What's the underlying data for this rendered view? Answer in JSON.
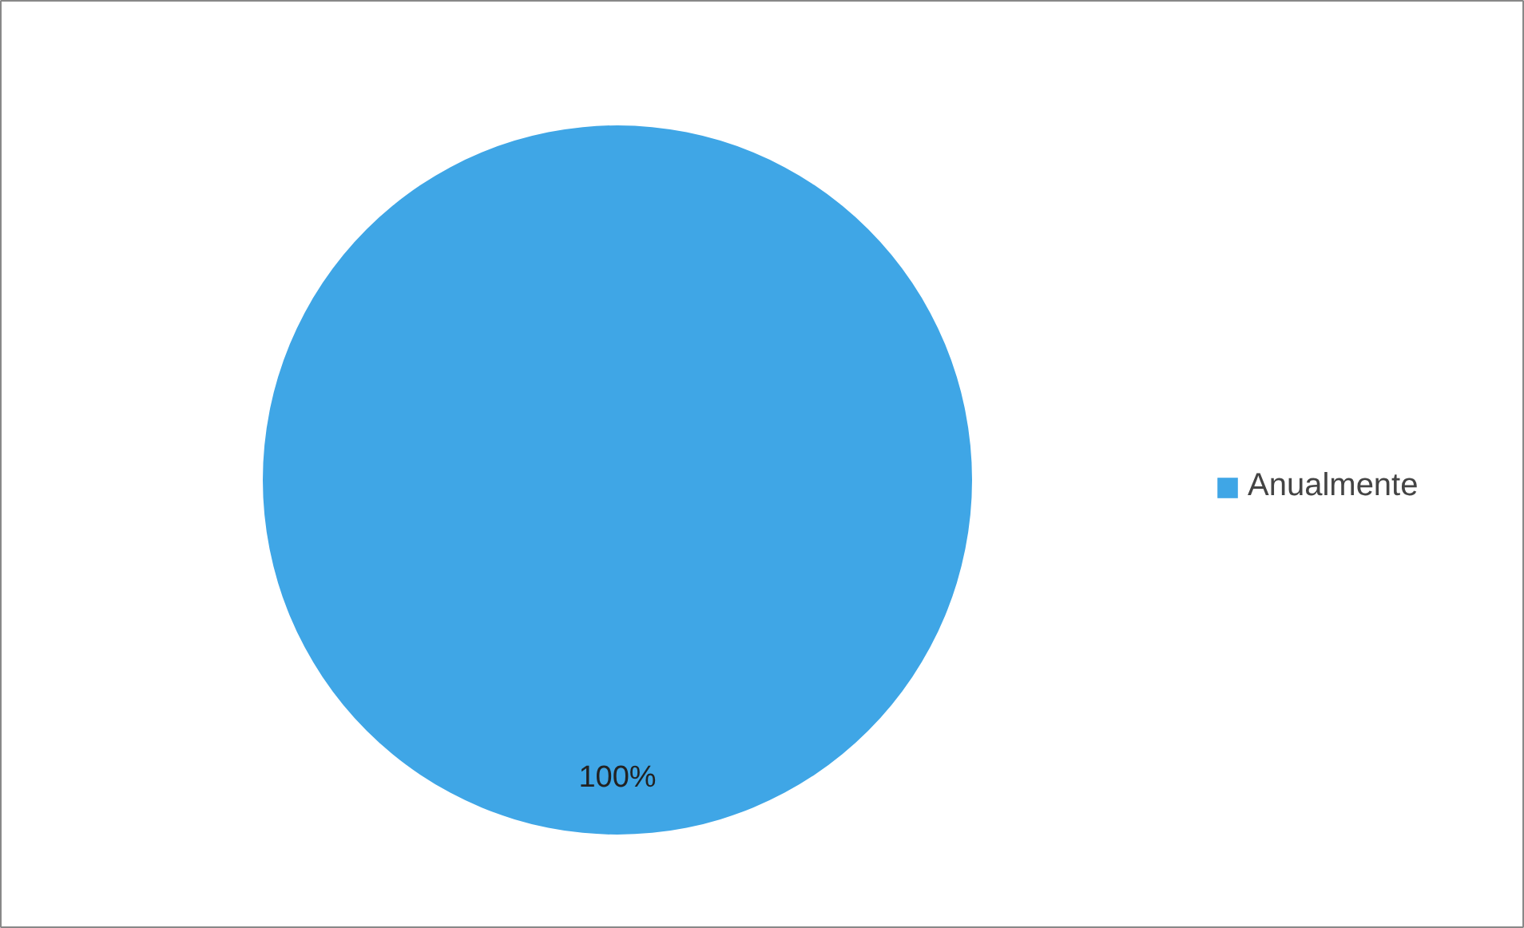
{
  "chart_data": {
    "type": "pie",
    "categories": [
      "Anualmente"
    ],
    "values": [
      100
    ],
    "colors": [
      "#3fa6e6"
    ],
    "value_labels": [
      "100%"
    ],
    "legend": "right"
  }
}
